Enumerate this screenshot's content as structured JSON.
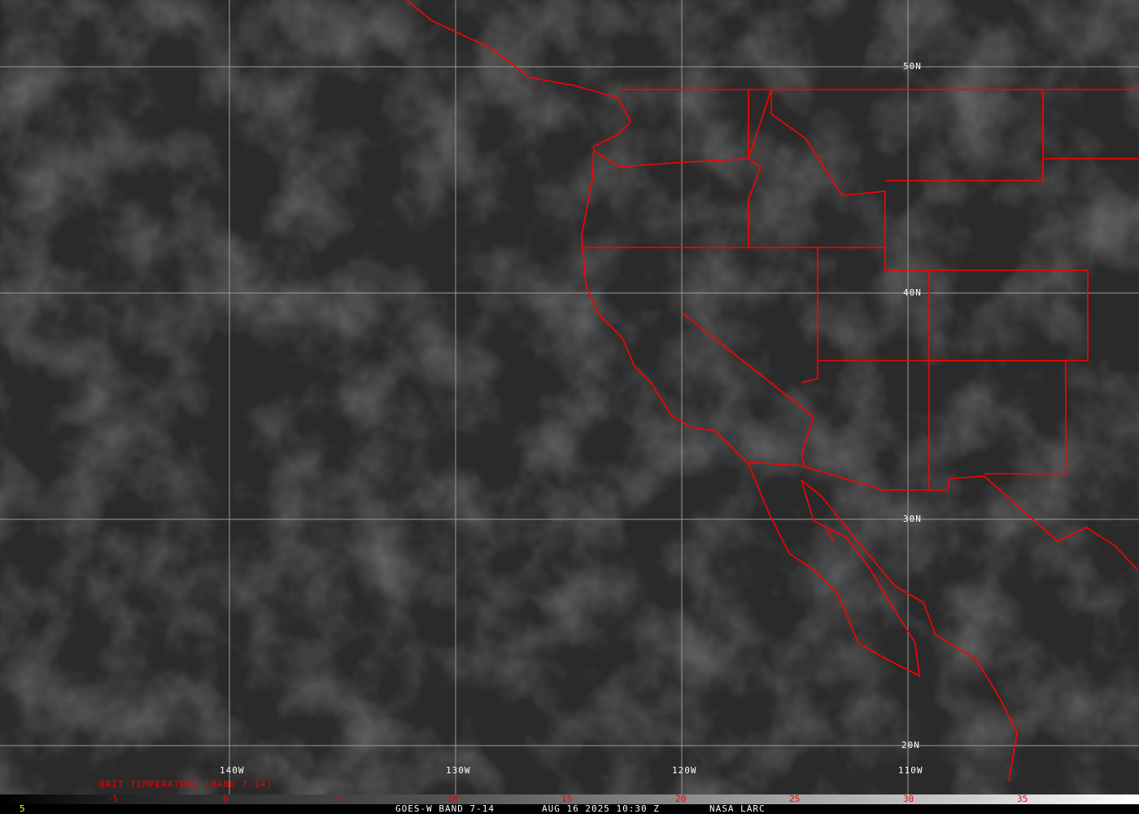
{
  "title": "GOES-W BAND 7-14",
  "datetime": "AUG 16 2025 10:30 Z",
  "credit": "NASA LARC",
  "frame_number": "5",
  "product_label": "BRIT TEMPERATURE (BAND 7-14)",
  "latitude_labels": [
    "50N",
    "40N",
    "30N",
    "20N"
  ],
  "longitude_labels": [
    "140W",
    "130W",
    "120W",
    "110W"
  ],
  "colorbar_ticks": [
    "-5",
    "0",
    "5",
    "10",
    "15",
    "20",
    "25",
    "30",
    "35"
  ],
  "colors": {
    "borders": "#ff0000",
    "grid": "#a0a0a0",
    "colorbar_labels": "#e00000",
    "frame_number": "#ffff00"
  }
}
